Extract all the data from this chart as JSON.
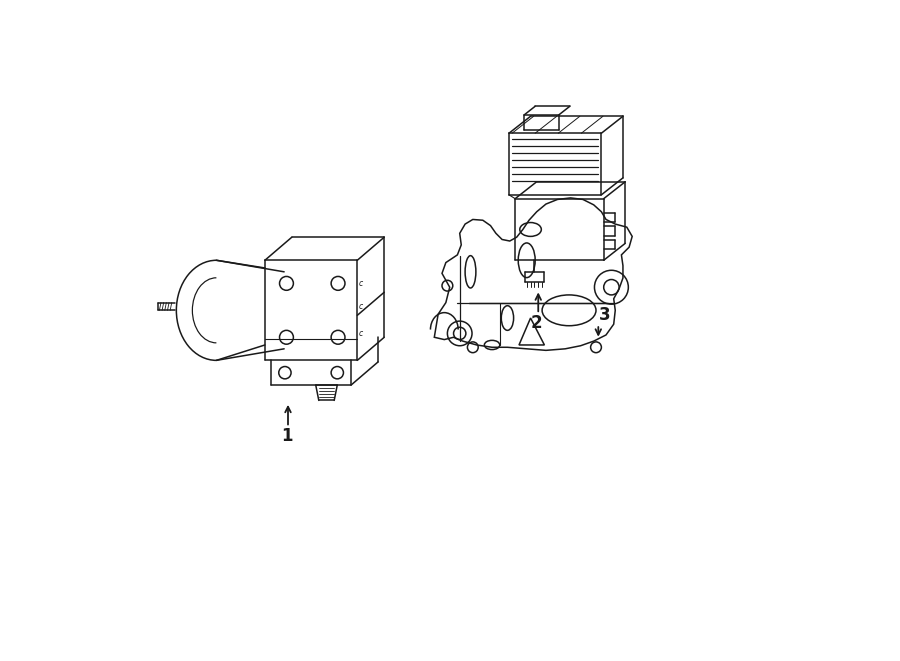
{
  "background_color": "#ffffff",
  "line_color": "#1a1a1a",
  "line_width": 1.1,
  "label_1": "1",
  "label_2": "2",
  "label_3": "3",
  "label_fontsize": 12,
  "fig_width": 9.0,
  "fig_height": 6.61,
  "dpi": 100
}
